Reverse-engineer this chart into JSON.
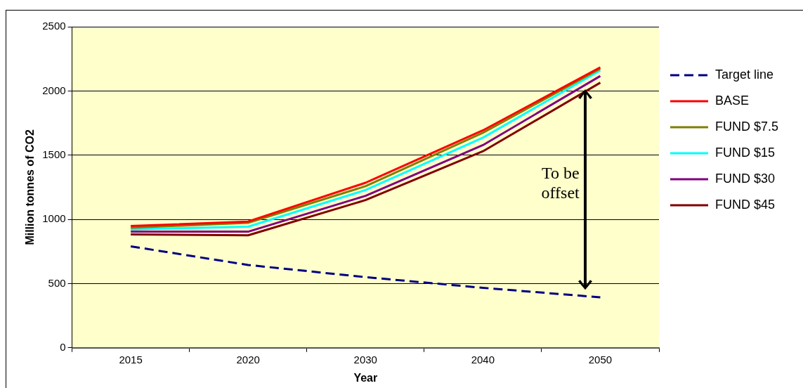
{
  "chart_data": {
    "type": "line",
    "xlabel": "Year",
    "ylabel": "Million tonnes of CO2",
    "categories": [
      "2015",
      "2020",
      "2030",
      "2040",
      "2050"
    ],
    "series": [
      {
        "name": "Target line",
        "color": "#000080",
        "line_style": "dashed",
        "values": [
          790,
          645,
          550,
          467,
          393
        ]
      },
      {
        "name": "BASE",
        "color": "#ff0000",
        "values": [
          948,
          983,
          1285,
          1693,
          2183
        ]
      },
      {
        "name": "FUND $7.5",
        "color": "#808000",
        "values": [
          935,
          973,
          1258,
          1674,
          2173
        ]
      },
      {
        "name": "FUND $15",
        "color": "#00ffff",
        "values": [
          923,
          943,
          1228,
          1636,
          2160
        ]
      },
      {
        "name": "FUND $30",
        "color": "#800080",
        "values": [
          904,
          904,
          1183,
          1578,
          2116
        ]
      },
      {
        "name": "FUND $45",
        "color": "#800000",
        "values": [
          883,
          876,
          1150,
          1530,
          2064
        ]
      }
    ],
    "ylim": [
      0,
      2500
    ],
    "yticks": [
      0,
      500,
      1000,
      1500,
      2000,
      2500
    ],
    "grid": "y",
    "legend": "right",
    "marker": "none",
    "line_style": "solid",
    "annotations": [
      "To be offset"
    ]
  }
}
